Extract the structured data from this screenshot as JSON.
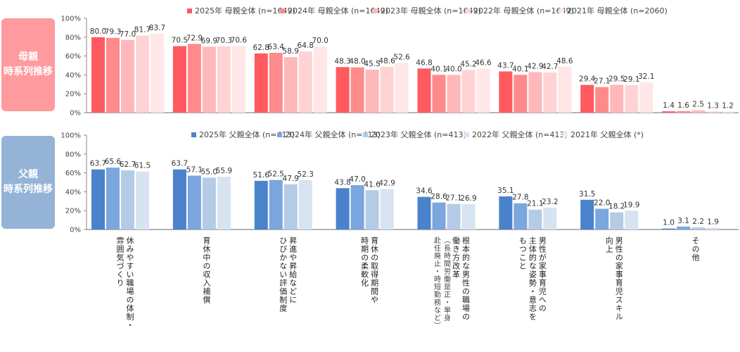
{
  "side_labels": {
    "mother": "母親\n時系列推移",
    "father": "父親\n時系列推移"
  },
  "colors": {
    "side_mother": "#ff9a9e",
    "side_father": "#95b3d7"
  },
  "chart_data": [
    {
      "type": "bar",
      "title": "母親 時系列推移",
      "ylabel": "",
      "xlabel": "",
      "ylim": [
        0,
        100
      ],
      "yticks": [
        "0%",
        "20%",
        "40%",
        "60%",
        "80%",
        "100%"
      ],
      "legend_position": "top-right",
      "categories": [
        "休みやすい職場の体制・雰囲気づくり",
        "育休中の収入補償",
        "昇進や昇給などにひびかない評価制度",
        "育休の取得期間や時期の柔軟化",
        "根本的な男性の職場の働き方改革（長時間労働是正・単身赴任廃止・時短勤務など）",
        "男性が家事育児への主体的な姿勢・意志をもつこと",
        "男性の家事育児スキル向上",
        "その他"
      ],
      "series": [
        {
          "name": "2025年 母親全体 (n=1649)",
          "color": "#ff5a5f",
          "values": [
            80.0,
            70.5,
            62.8,
            48.3,
            46.8,
            43.7,
            29.4,
            1.4
          ]
        },
        {
          "name": "2024年 母親全体 (n=1649)",
          "color": "#ff8a8c",
          "values": [
            79.3,
            72.9,
            63.4,
            48.0,
            40.1,
            40.1,
            27.1,
            1.6
          ]
        },
        {
          "name": "2023年 母親全体 (n=1649)",
          "color": "#ffb8ba",
          "values": [
            77.0,
            69.9,
            58.9,
            45.5,
            40.0,
            42.9,
            29.5,
            2.5
          ]
        },
        {
          "name": "2022年 母親全体 (n=1649)",
          "color": "#ffd3d4",
          "values": [
            81.7,
            70.3,
            64.8,
            48.6,
            45.2,
            42.7,
            29.1,
            1.3
          ]
        },
        {
          "name": "2021年 母親全体 (n=2060)",
          "color": "#ffe6e7",
          "values": [
            83.7,
            70.6,
            70.0,
            52.6,
            46.6,
            48.6,
            32.1,
            1.2
          ]
        }
      ]
    },
    {
      "type": "bar",
      "title": "父親 時系列推移",
      "ylabel": "",
      "xlabel": "",
      "ylim": [
        0,
        100
      ],
      "yticks": [
        "0%",
        "20%",
        "40%",
        "60%",
        "80%",
        "100%"
      ],
      "legend_position": "top-right",
      "categories": [
        "休みやすい職場の体制・雰囲気づくり",
        "育休中の収入補償",
        "昇進や昇給などにひびかない評価制度",
        "育休の取得期間や時期の柔軟化",
        "根本的な男性の職場の働き方改革（長時間労働是正・単身赴任廃止・時短勤務など）",
        "男性が家事育児への主体的な姿勢・意志をもつこと",
        "男性の家事育児スキル向上",
        "その他"
      ],
      "series": [
        {
          "name": "2025年 父親全体 (n=413)",
          "color": "#4a82cc",
          "values": [
            63.7,
            63.7,
            51.6,
            43.8,
            34.6,
            35.1,
            31.5,
            1.0
          ]
        },
        {
          "name": "2024年 父親全体 (n=413)",
          "color": "#7ba6de",
          "values": [
            65.6,
            57.1,
            52.5,
            47.0,
            28.6,
            27.8,
            22.0,
            3.1
          ]
        },
        {
          "name": "2023年 父親全体 (n=413)",
          "color": "#b4cbe6",
          "values": [
            62.7,
            55.0,
            47.9,
            41.6,
            27.1,
            21.1,
            18.2,
            2.2
          ]
        },
        {
          "name": "2022年 父親全体 (n=413)",
          "color": "#d7e3f1",
          "values": [
            61.5,
            55.9,
            52.3,
            42.9,
            26.9,
            23.2,
            19.9,
            1.9
          ]
        },
        {
          "name": "2021年 父親全体 (*)",
          "color": "#eeeeee",
          "values": [
            null,
            null,
            null,
            null,
            null,
            null,
            null,
            null
          ]
        }
      ]
    }
  ],
  "category_labels": [
    {
      "lines": [
        "休みやすい職場の体制・",
        "雰囲気づくり"
      ],
      "sub": []
    },
    {
      "lines": [
        "育休中の収入補償"
      ],
      "sub": []
    },
    {
      "lines": [
        "昇進や昇給などに",
        "ひびかない評価制度"
      ],
      "sub": []
    },
    {
      "lines": [
        "育休の取得期間や",
        "時期の柔軟化"
      ],
      "sub": []
    },
    {
      "lines": [
        "根本的な男性の職場の",
        "働き方改革"
      ],
      "sub": [
        "（長時間労働是正・単身",
        "赴任廃止・時短勤務など）"
      ]
    },
    {
      "lines": [
        "男性が家事育児への",
        "主体的な姿勢・意志を",
        "もつこと"
      ],
      "sub": []
    },
    {
      "lines": [
        "男性の家事育児スキル",
        "向上"
      ],
      "sub": []
    },
    {
      "lines": [
        "その他"
      ],
      "sub": []
    }
  ]
}
